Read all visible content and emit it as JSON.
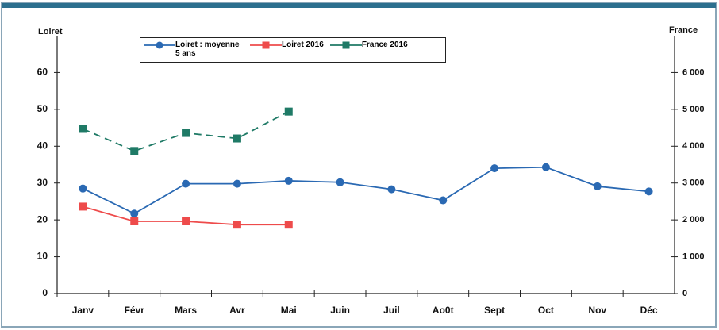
{
  "chart_data": {
    "type": "line",
    "y_label": "Loiret",
    "y2_label": "France",
    "categories": [
      "Janv",
      "Févr",
      "Mars",
      "Avr",
      "Mai",
      "Juin",
      "Juil",
      "Ao0t",
      "Sept",
      "Oct",
      "Nov",
      "Déc"
    ],
    "series": [
      {
        "name": "Loiret : moyenne 5 ans",
        "color": "#2a69b3",
        "marker": "circle",
        "dashed": false,
        "values": [
          28.5,
          21.7,
          29.8,
          29.8,
          30.6,
          30.2,
          28.3,
          25.3,
          34,
          34.3,
          29.1,
          27.7
        ]
      },
      {
        "name": "Loiret 2016",
        "color": "#ee4b4b",
        "marker": "square",
        "dashed": false,
        "values": [
          23.6,
          19.6,
          19.6,
          18.7,
          18.7,
          null,
          null,
          null,
          null,
          null,
          null,
          null
        ]
      },
      {
        "name": "France 2016",
        "color": "#1f7a66",
        "marker": "square",
        "dashed": true,
        "axis": "y2",
        "values": [
          4470,
          3870,
          4360,
          4210,
          4940,
          null,
          null,
          null,
          null,
          null,
          null,
          null
        ]
      }
    ],
    "ylim": [
      0,
      70
    ],
    "yticks": [
      0,
      10,
      20,
      30,
      40,
      50,
      60
    ],
    "y2lim": [
      0,
      7000
    ],
    "y2ticks": [
      0,
      {
        "value": 1000,
        "label": "1 000"
      },
      {
        "value": 2000,
        "label": "2 000"
      },
      {
        "value": 3000,
        "label": "3 000"
      },
      {
        "value": 4000,
        "label": "4 000"
      },
      {
        "value": 5000,
        "label": "5 000"
      },
      {
        "value": 6000,
        "label": "6 000"
      }
    ],
    "grid": false
  }
}
